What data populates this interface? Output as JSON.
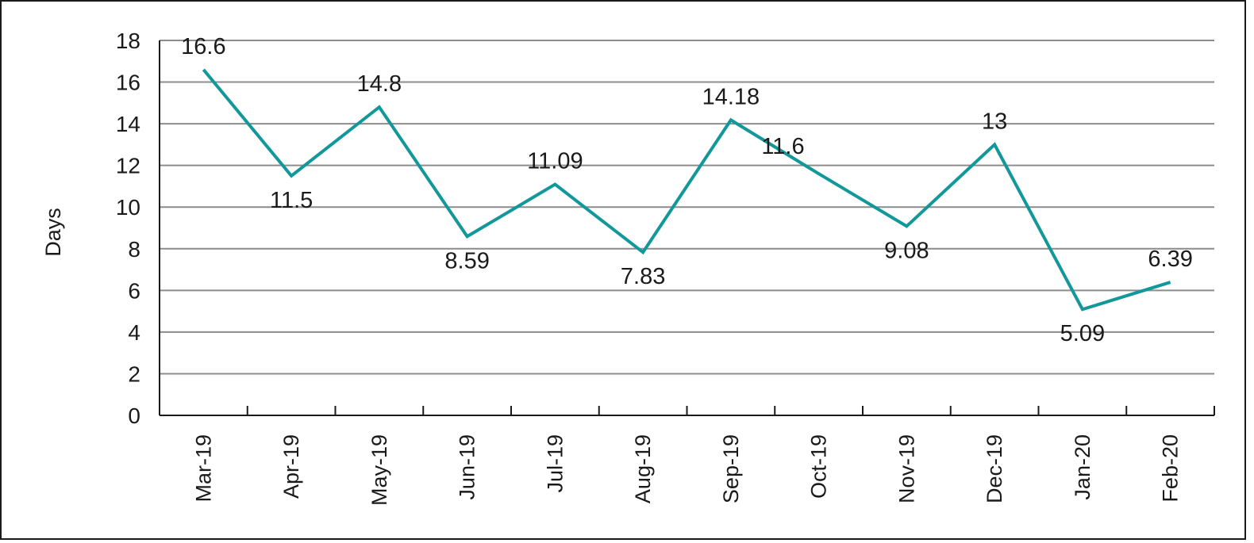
{
  "chart_data": {
    "type": "line",
    "title": "",
    "xlabel": "",
    "ylabel": "Days",
    "ylim": [
      0,
      18
    ],
    "yticks": [
      0,
      2,
      4,
      6,
      8,
      10,
      12,
      14,
      16,
      18
    ],
    "grid": true,
    "legend": "none",
    "categories": [
      "Mar-19",
      "Apr-19",
      "May-19",
      "Jun-19",
      "Jul-19",
      "Aug-19",
      "Sep-19",
      "Oct-19",
      "Nov-19",
      "Dec-19",
      "Jan-20",
      "Feb-20"
    ],
    "series": [
      {
        "values": [
          16.6,
          11.5,
          14.8,
          8.59,
          11.09,
          7.83,
          14.18,
          11.6,
          9.08,
          13,
          5.09,
          6.39
        ],
        "labels": [
          "16.6",
          "11.5",
          "14.8",
          "8.59",
          "11.09",
          "7.83",
          "14.18",
          "11.6",
          "9.08",
          "13",
          "5.09",
          "6.39"
        ],
        "label_positions": [
          "above",
          "below",
          "above",
          "below",
          "above",
          "below",
          "above",
          "left",
          "below",
          "above",
          "below",
          "above"
        ],
        "color": "#12989a"
      }
    ],
    "gridline_color": "#8c8c8c",
    "axis_color": "#1a1a1a"
  }
}
